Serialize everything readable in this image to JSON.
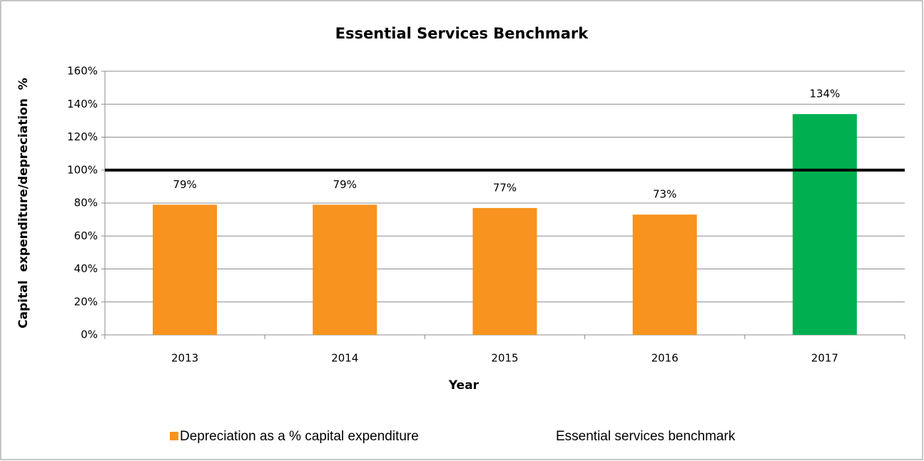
{
  "chart_data": {
    "type": "bar",
    "title": "Essential Services Benchmark",
    "x_label": "Year",
    "y_label": "Capital  expenditure/depreciation  %",
    "categories": [
      "2013",
      "2014",
      "2015",
      "2016",
      "2017"
    ],
    "series": [
      {
        "name": "Depreciation as a % capital expenditure",
        "color": "#f7931e",
        "colors": [
          "#f7931e",
          "#f7931e",
          "#f7931e",
          "#f7931e",
          "#00b050"
        ],
        "values": [
          79,
          79,
          77,
          73,
          134
        ],
        "value_labels": [
          "79%",
          "79%",
          "77%",
          "73%",
          "134%"
        ]
      },
      {
        "name": "Essential services benchmark",
        "type": "line",
        "color": "#000000",
        "values": [
          100,
          100,
          100,
          100,
          100
        ]
      }
    ],
    "ylim": [
      0,
      160
    ],
    "yticks": [
      {
        "value": 0,
        "label": "0%"
      },
      {
        "value": 20,
        "label": "20%"
      },
      {
        "value": 40,
        "label": "40%"
      },
      {
        "value": 60,
        "label": "60%"
      },
      {
        "value": 80,
        "label": "80%"
      },
      {
        "value": 100,
        "label": "100%"
      },
      {
        "value": 120,
        "label": "120%"
      },
      {
        "value": 140,
        "label": "140%"
      },
      {
        "value": 160,
        "label": "160%"
      }
    ],
    "grid": true
  }
}
